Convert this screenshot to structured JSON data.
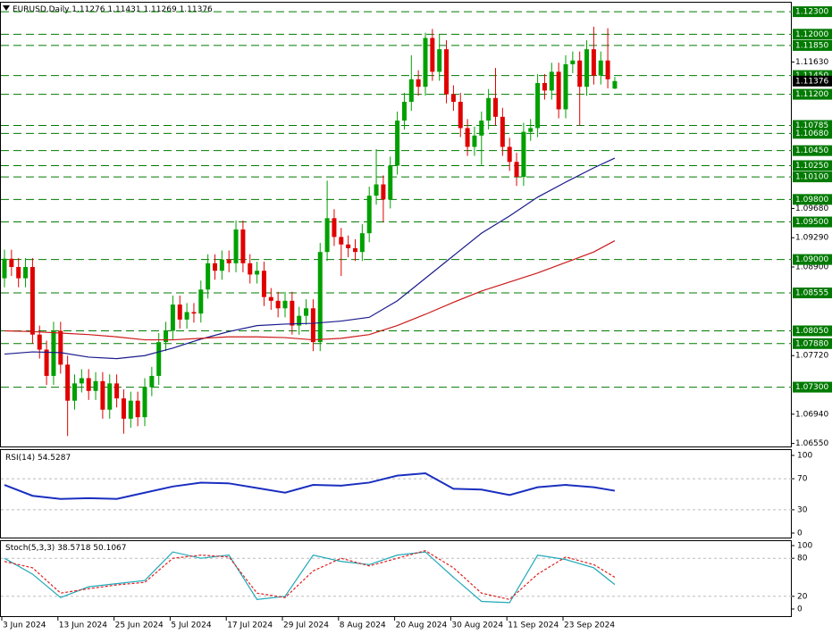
{
  "chart_data": {
    "type": "candlestick",
    "symbol": "EURUSD,Daily",
    "categories": [
      "3 Jun 2024",
      null,
      null,
      null,
      null,
      null,
      null,
      null,
      "13 Jun 2024",
      null,
      null,
      null,
      null,
      null,
      null,
      null,
      "25 Jun 2024",
      null,
      null,
      null,
      null,
      null,
      null,
      null,
      "5 Jul 2024",
      null,
      null,
      null,
      null,
      null,
      null,
      null,
      "17 Jul 2024",
      null,
      null,
      null,
      null,
      null,
      null,
      null,
      "29 Jul 2024",
      null,
      null,
      null,
      null,
      null,
      null,
      null,
      "8 Aug 2024",
      null,
      null,
      null,
      null,
      null,
      null,
      null,
      "20 Aug 2024",
      null,
      null,
      null,
      null,
      null,
      null,
      null,
      "30 Aug 2024",
      null,
      null,
      null,
      null,
      null,
      null,
      null,
      "11 Sep 2024",
      null,
      null,
      null,
      null,
      null,
      null,
      null,
      "23 Sep 2024",
      null,
      null,
      null,
      null,
      null,
      null,
      null
    ],
    "open": [
      1.0875,
      1.0901,
      1.089,
      1.0875,
      1.089,
      1.08,
      1.078,
      1.0745,
      1.0805,
      1.076,
      1.0712,
      1.0735,
      1.0742,
      1.0725,
      1.0738,
      1.07,
      1.0735,
      1.0715,
      1.0688,
      1.0712,
      1.069,
      1.073,
      1.0745,
      1.079,
      1.0805,
      1.084,
      1.082,
      1.083,
      1.0828,
      1.086,
      1.0895,
      1.0885,
      1.09,
      1.0895,
      1.094,
      1.0895,
      1.088,
      1.0885,
      1.085,
      1.0845,
      1.0835,
      1.0845,
      1.0812,
      1.0825,
      1.0835,
      1.079,
      1.091,
      1.0955,
      1.093,
      1.092,
      1.0915,
      1.091,
      1.0935,
      1.0985,
      1.1,
      1.098,
      1.1025,
      1.1085,
      1.111,
      1.114,
      1.113,
      1.1195,
      1.115,
      1.118,
      1.112,
      1.111,
      1.1075,
      1.105,
      1.1065,
      1.1085,
      1.1115,
      1.109,
      1.105,
      1.103,
      1.101,
      1.107,
      1.1075,
      1.1135,
      1.1125,
      1.115,
      1.11,
      1.116,
      1.1165,
      1.113,
      1.118,
      1.1145,
      1.1165,
      1.11276
    ],
    "high": [
      1.0913,
      1.0913,
      1.0902,
      1.0902,
      1.0902,
      1.0812,
      1.0792,
      1.0817,
      1.0817,
      1.0772,
      1.0747,
      1.0754,
      1.0754,
      1.075,
      1.075,
      1.0747,
      1.0747,
      1.0727,
      1.0724,
      1.0724,
      1.0742,
      1.0757,
      1.0802,
      1.0817,
      1.0852,
      1.0852,
      1.0842,
      1.0842,
      1.0872,
      1.0907,
      1.0907,
      1.0912,
      1.0912,
      1.0952,
      1.0952,
      1.0907,
      1.0897,
      1.0897,
      1.0862,
      1.0857,
      1.0857,
      1.0857,
      1.0837,
      1.0847,
      1.0847,
      1.0922,
      1.1005,
      1.0967,
      1.0942,
      1.0932,
      1.0927,
      1.0947,
      1.0997,
      1.1047,
      1.1012,
      1.1037,
      1.1097,
      1.1122,
      1.1172,
      1.1152,
      1.1202,
      1.1207,
      1.12,
      1.1192,
      1.1132,
      1.1122,
      1.1087,
      1.1077,
      1.1097,
      1.1127,
      1.1155,
      1.1102,
      1.1062,
      1.1042,
      1.1082,
      1.1087,
      1.1147,
      1.1147,
      1.1162,
      1.1162,
      1.1172,
      1.1177,
      1.1177,
      1.1192,
      1.121,
      1.1177,
      1.1208,
      1.11431
    ],
    "low": [
      1.0863,
      1.0878,
      1.0863,
      1.0863,
      1.0788,
      1.0768,
      1.0733,
      1.0733,
      1.0748,
      1.0665,
      1.07,
      1.0723,
      1.0713,
      1.0713,
      1.0688,
      1.0688,
      1.0703,
      1.0668,
      1.0676,
      1.0678,
      1.0678,
      1.0718,
      1.0733,
      1.0778,
      1.0793,
      1.0808,
      1.0808,
      1.0816,
      1.0816,
      1.0848,
      1.0873,
      1.0873,
      1.0883,
      1.0883,
      1.0883,
      1.0868,
      1.0868,
      1.0838,
      1.0833,
      1.0823,
      1.0823,
      1.08,
      1.08,
      1.0813,
      1.0778,
      1.0778,
      1.0898,
      1.0918,
      1.0878,
      1.0903,
      1.0898,
      1.0898,
      1.0923,
      1.0973,
      1.095,
      1.0968,
      1.1013,
      1.1073,
      1.1098,
      1.1118,
      1.1118,
      1.1138,
      1.1138,
      1.1108,
      1.1098,
      1.1063,
      1.1038,
      1.1038,
      1.1026,
      1.1073,
      1.1078,
      1.1038,
      1.1018,
      1.0998,
      1.0998,
      1.1058,
      1.1063,
      1.1113,
      1.1113,
      1.1088,
      1.1088,
      1.1148,
      1.1078,
      1.1118,
      1.1133,
      1.1133,
      1.1128,
      1.11269
    ],
    "close": [
      1.0901,
      1.089,
      1.0875,
      1.089,
      1.08,
      1.078,
      1.0745,
      1.0805,
      1.076,
      1.0712,
      1.0735,
      1.0742,
      1.0725,
      1.0738,
      1.07,
      1.0735,
      1.0715,
      1.0688,
      1.0712,
      1.069,
      1.073,
      1.0745,
      1.079,
      1.0805,
      1.084,
      1.082,
      1.083,
      1.0828,
      1.086,
      1.0895,
      1.0885,
      1.09,
      1.0895,
      1.094,
      1.0895,
      1.088,
      1.0885,
      1.085,
      1.0845,
      1.0835,
      1.0845,
      1.0812,
      1.0825,
      1.0835,
      1.079,
      1.091,
      1.0955,
      1.093,
      1.092,
      1.0915,
      1.091,
      1.0935,
      1.0985,
      1.1,
      1.098,
      1.1025,
      1.1085,
      1.111,
      1.114,
      1.113,
      1.1195,
      1.115,
      1.118,
      1.112,
      1.111,
      1.1075,
      1.105,
      1.1065,
      1.1085,
      1.1115,
      1.109,
      1.105,
      1.103,
      1.101,
      1.107,
      1.1075,
      1.1135,
      1.1125,
      1.115,
      1.11,
      1.116,
      1.1165,
      1.113,
      1.118,
      1.1145,
      1.1165,
      1.114,
      1.11376
    ],
    "up_color": "#00a000",
    "down_color": "#e00000",
    "ylim": [
      1.0651,
      1.1242
    ],
    "yticks": [
      {
        "value": 1.1163,
        "label": "1.11630"
      },
      {
        "value": 1.0968,
        "label": "1.09680"
      },
      {
        "value": 1.0929,
        "label": "1.09290"
      },
      {
        "value": 1.089,
        "label": "1.08900"
      },
      {
        "value": 1.0772,
        "label": "1.07720"
      },
      {
        "value": 1.0694,
        "label": "1.06940"
      },
      {
        "value": 1.0655,
        "label": "1.06550"
      }
    ],
    "levels": [
      {
        "value": 1.123,
        "label": "1.12300"
      },
      {
        "value": 1.12,
        "label": "1.12000"
      },
      {
        "value": 1.1185,
        "label": "1.11850"
      },
      {
        "value": 1.1145,
        "label": "1.11450"
      },
      {
        "value": 1.112,
        "label": "1.11200"
      },
      1.10785,
      {
        "value": 1.1068,
        "label": "1.10680"
      },
      {
        "value": 1.1045,
        "label": "1.10450"
      },
      {
        "value": 1.1025,
        "label": "1.10250"
      },
      {
        "value": 1.101,
        "label": "1.10100"
      },
      {
        "value": 1.098,
        "label": "1.09800"
      },
      {
        "value": 1.095,
        "label": "1.09500"
      },
      {
        "value": 1.09,
        "label": "1.09000"
      },
      1.08555,
      {
        "value": 1.0805,
        "label": "1.08050"
      },
      {
        "value": 1.0788,
        "label": "1.07880"
      },
      {
        "value": 1.073,
        "label": "1.07300"
      }
    ],
    "level_color": "#007a00",
    "indicator_index": [
      0,
      4,
      8,
      12,
      16,
      20,
      24,
      28,
      32,
      36,
      40,
      44,
      48,
      52,
      56,
      60,
      64,
      68,
      72,
      76,
      80,
      84,
      87
    ],
    "overlays": [
      {
        "color": "#1a1a8c",
        "values": [
          1.0774,
          1.0777,
          1.0776,
          1.077,
          1.0768,
          1.0772,
          1.0782,
          1.0794,
          1.0804,
          1.0812,
          1.0814,
          1.0815,
          1.0818,
          1.0823,
          1.0845,
          1.0875,
          1.0905,
          1.0935,
          1.0958,
          1.0983,
          1.1003,
          1.1022,
          1.1035
        ]
      },
      {
        "color": "#cc1a1a",
        "values": [
          1.0805,
          1.0804,
          1.0802,
          1.08,
          1.0797,
          1.0793,
          1.0793,
          1.0795,
          1.0797,
          1.0797,
          1.0796,
          1.0793,
          1.0795,
          1.08,
          1.0812,
          1.0827,
          1.0843,
          1.0858,
          1.087,
          1.0882,
          1.0896,
          1.091,
          1.0925
        ]
      }
    ],
    "rsi": {
      "label": "RSI(14)",
      "color": "#1a2fc0",
      "ylim": [
        0,
        100
      ],
      "yticks": [
        100,
        70,
        30,
        0
      ],
      "levels": [
        70,
        30
      ],
      "values": [
        62,
        48,
        44,
        45,
        44,
        52,
        60,
        65,
        64,
        58,
        52,
        62,
        61,
        65,
        74,
        77,
        57,
        56,
        49,
        59,
        62,
        59,
        54.5287
      ]
    },
    "stoch": {
      "label": "Stoch(5,3,3)",
      "ylim": [
        0,
        100
      ],
      "yticks": [
        100,
        80,
        20,
        0
      ],
      "levels": [
        80,
        20
      ],
      "main": {
        "color": "#20a8b8",
        "values": [
          80,
          55,
          18,
          35,
          40,
          45,
          90,
          80,
          85,
          15,
          20,
          85,
          75,
          70,
          85,
          90,
          50,
          12,
          10,
          85,
          78,
          65,
          38.5718
        ]
      },
      "signal": {
        "color": "#e02020",
        "values": [
          75,
          65,
          25,
          32,
          38,
          42,
          80,
          85,
          82,
          25,
          18,
          60,
          80,
          68,
          80,
          92,
          65,
          25,
          15,
          55,
          82,
          70,
          50.1067
        ]
      }
    }
  }
}
